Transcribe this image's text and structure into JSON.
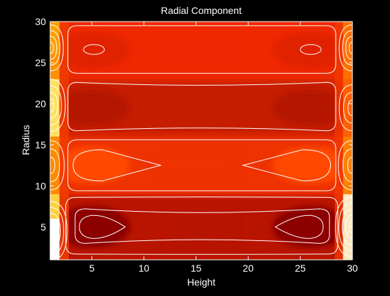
{
  "chart_data": {
    "type": "heatmap",
    "title": "Radial Component",
    "xlabel": "Height",
    "ylabel": "Radius",
    "xlim": [
      1,
      30
    ],
    "ylim": [
      1,
      30
    ],
    "x_ticks": [
      5,
      10,
      15,
      20,
      25,
      30
    ],
    "y_ticks": [
      5,
      10,
      15,
      20,
      25,
      30
    ],
    "colormap": "hot",
    "contour_color": "#ffffff",
    "background_color": "#000000",
    "grid": false,
    "color_bands": [
      {
        "radius_range": [
          1,
          9
        ],
        "fill": "#b81400",
        "core_fill": "#8c0000",
        "note_cells": [
          5,
          26
        ]
      },
      {
        "radius_range": [
          9,
          16
        ],
        "fill": "#ee3200",
        "core_fill": "#ff4a00",
        "note_cells": [
          5,
          26
        ]
      },
      {
        "radius_range": [
          16,
          23
        ],
        "fill": "#c61d00",
        "core_fill": "#b51300",
        "note_cells": [
          5,
          26
        ]
      },
      {
        "radius_range": [
          23,
          30
        ],
        "fill": "#f02800",
        "core_fill": "#e02000",
        "note_cells": [
          5,
          26
        ]
      }
    ],
    "left_edge_colors": [
      "#ffffff",
      "#ffd040",
      "#ff8a00",
      "#ffe060",
      "#ff9000",
      "#ffa000"
    ],
    "right_edge_colors": [
      "#ffe8c0",
      "#ff8000",
      "#ff6000",
      "#ff7000"
    ]
  }
}
